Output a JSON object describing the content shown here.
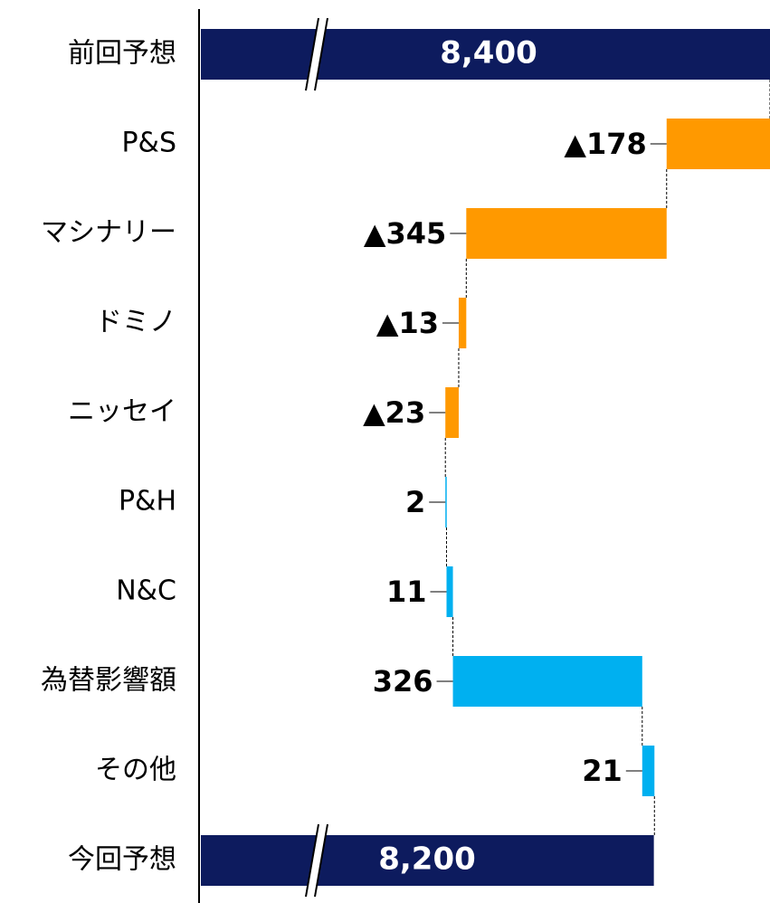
{
  "chart_data": {
    "type": "waterfall",
    "categories": [
      "前回予想",
      "P&S",
      "マシナリー",
      "ドミノ",
      "ニッセイ",
      "P&H",
      "N&C",
      "為替影響額",
      "その他",
      "今回予想"
    ],
    "values": [
      8400,
      -178,
      -345,
      -13,
      -23,
      2,
      11,
      326,
      21,
      8200
    ],
    "value_labels": [
      "8,400",
      "▲178",
      "▲345",
      "▲13",
      "▲23",
      "2",
      "11",
      "326",
      "21",
      "8,200"
    ],
    "xlim": [
      7420,
      8400
    ],
    "total_color": "#0d1b5e",
    "decrease_color": "#ff9900",
    "increase_color": "#00b0f0"
  }
}
